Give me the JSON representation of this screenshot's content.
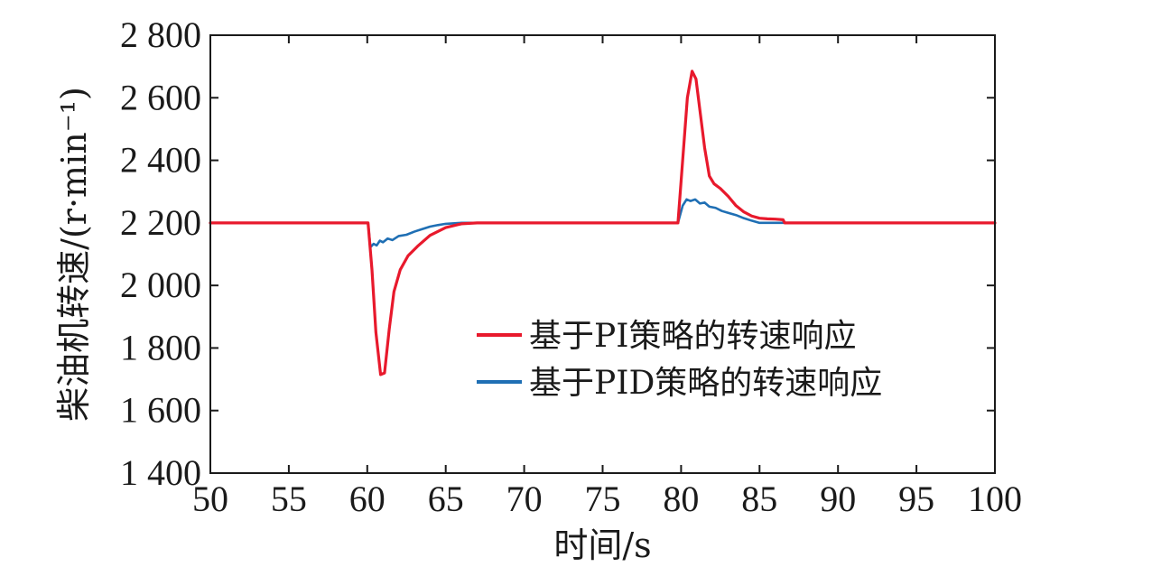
{
  "chart_data": {
    "type": "line",
    "xlabel": "时间/s",
    "ylabel": "柴油机转速/(r·min⁻¹)",
    "xlim": [
      50,
      100
    ],
    "ylim": [
      1400,
      2800
    ],
    "xticks": [
      50,
      55,
      60,
      65,
      70,
      75,
      80,
      85,
      90,
      95,
      100
    ],
    "yticks": [
      1400,
      1600,
      1800,
      2000,
      2200,
      2400,
      2600,
      2800
    ],
    "ytick_labels": [
      "1 400",
      "1 600",
      "1 800",
      "2 000",
      "2 200",
      "2 400",
      "2 600",
      "2 800"
    ],
    "grid": false,
    "legend_position": "center-right",
    "series": [
      {
        "name": "基于PI策略的转速响应",
        "color": "#e8192c",
        "x": [
          50,
          59.8,
          60.05,
          60.3,
          60.55,
          60.85,
          61.1,
          61.4,
          61.7,
          62.1,
          62.6,
          63.2,
          64,
          65,
          66,
          67,
          70,
          79.8,
          80.1,
          80.4,
          80.7,
          80.95,
          81.2,
          81.5,
          81.8,
          82.1,
          82.5,
          83,
          83.5,
          84,
          84.5,
          85,
          85.5,
          86,
          86.5,
          86.6,
          87,
          90,
          100
        ],
        "y": [
          2200,
          2200,
          2200,
          2050,
          1850,
          1715,
          1720,
          1860,
          1980,
          2050,
          2095,
          2125,
          2160,
          2185,
          2197,
          2200,
          2200,
          2200,
          2400,
          2600,
          2685,
          2660,
          2560,
          2440,
          2350,
          2325,
          2310,
          2285,
          2255,
          2235,
          2222,
          2215,
          2213,
          2212,
          2210,
          2200,
          2200,
          2200,
          2200
        ]
      },
      {
        "name": "基于PID策略的转速响应",
        "color": "#1f6fb4",
        "x": [
          50,
          59.8,
          60.05,
          60.2,
          60.4,
          60.6,
          60.8,
          61,
          61.3,
          61.6,
          62,
          62.5,
          63,
          63.5,
          64,
          64.5,
          65,
          66,
          70,
          79.8,
          80.1,
          80.35,
          80.6,
          80.9,
          81.2,
          81.5,
          81.8,
          82.2,
          82.6,
          83,
          83.5,
          84,
          84.5,
          85,
          86,
          90,
          100
        ],
        "y": [
          2200,
          2200,
          2200,
          2122,
          2133,
          2128,
          2143,
          2138,
          2150,
          2145,
          2158,
          2162,
          2172,
          2180,
          2188,
          2193,
          2197,
          2200,
          2200,
          2200,
          2255,
          2275,
          2270,
          2275,
          2262,
          2265,
          2252,
          2248,
          2238,
          2232,
          2225,
          2215,
          2207,
          2200,
          2200,
          2200,
          2200
        ]
      }
    ]
  }
}
